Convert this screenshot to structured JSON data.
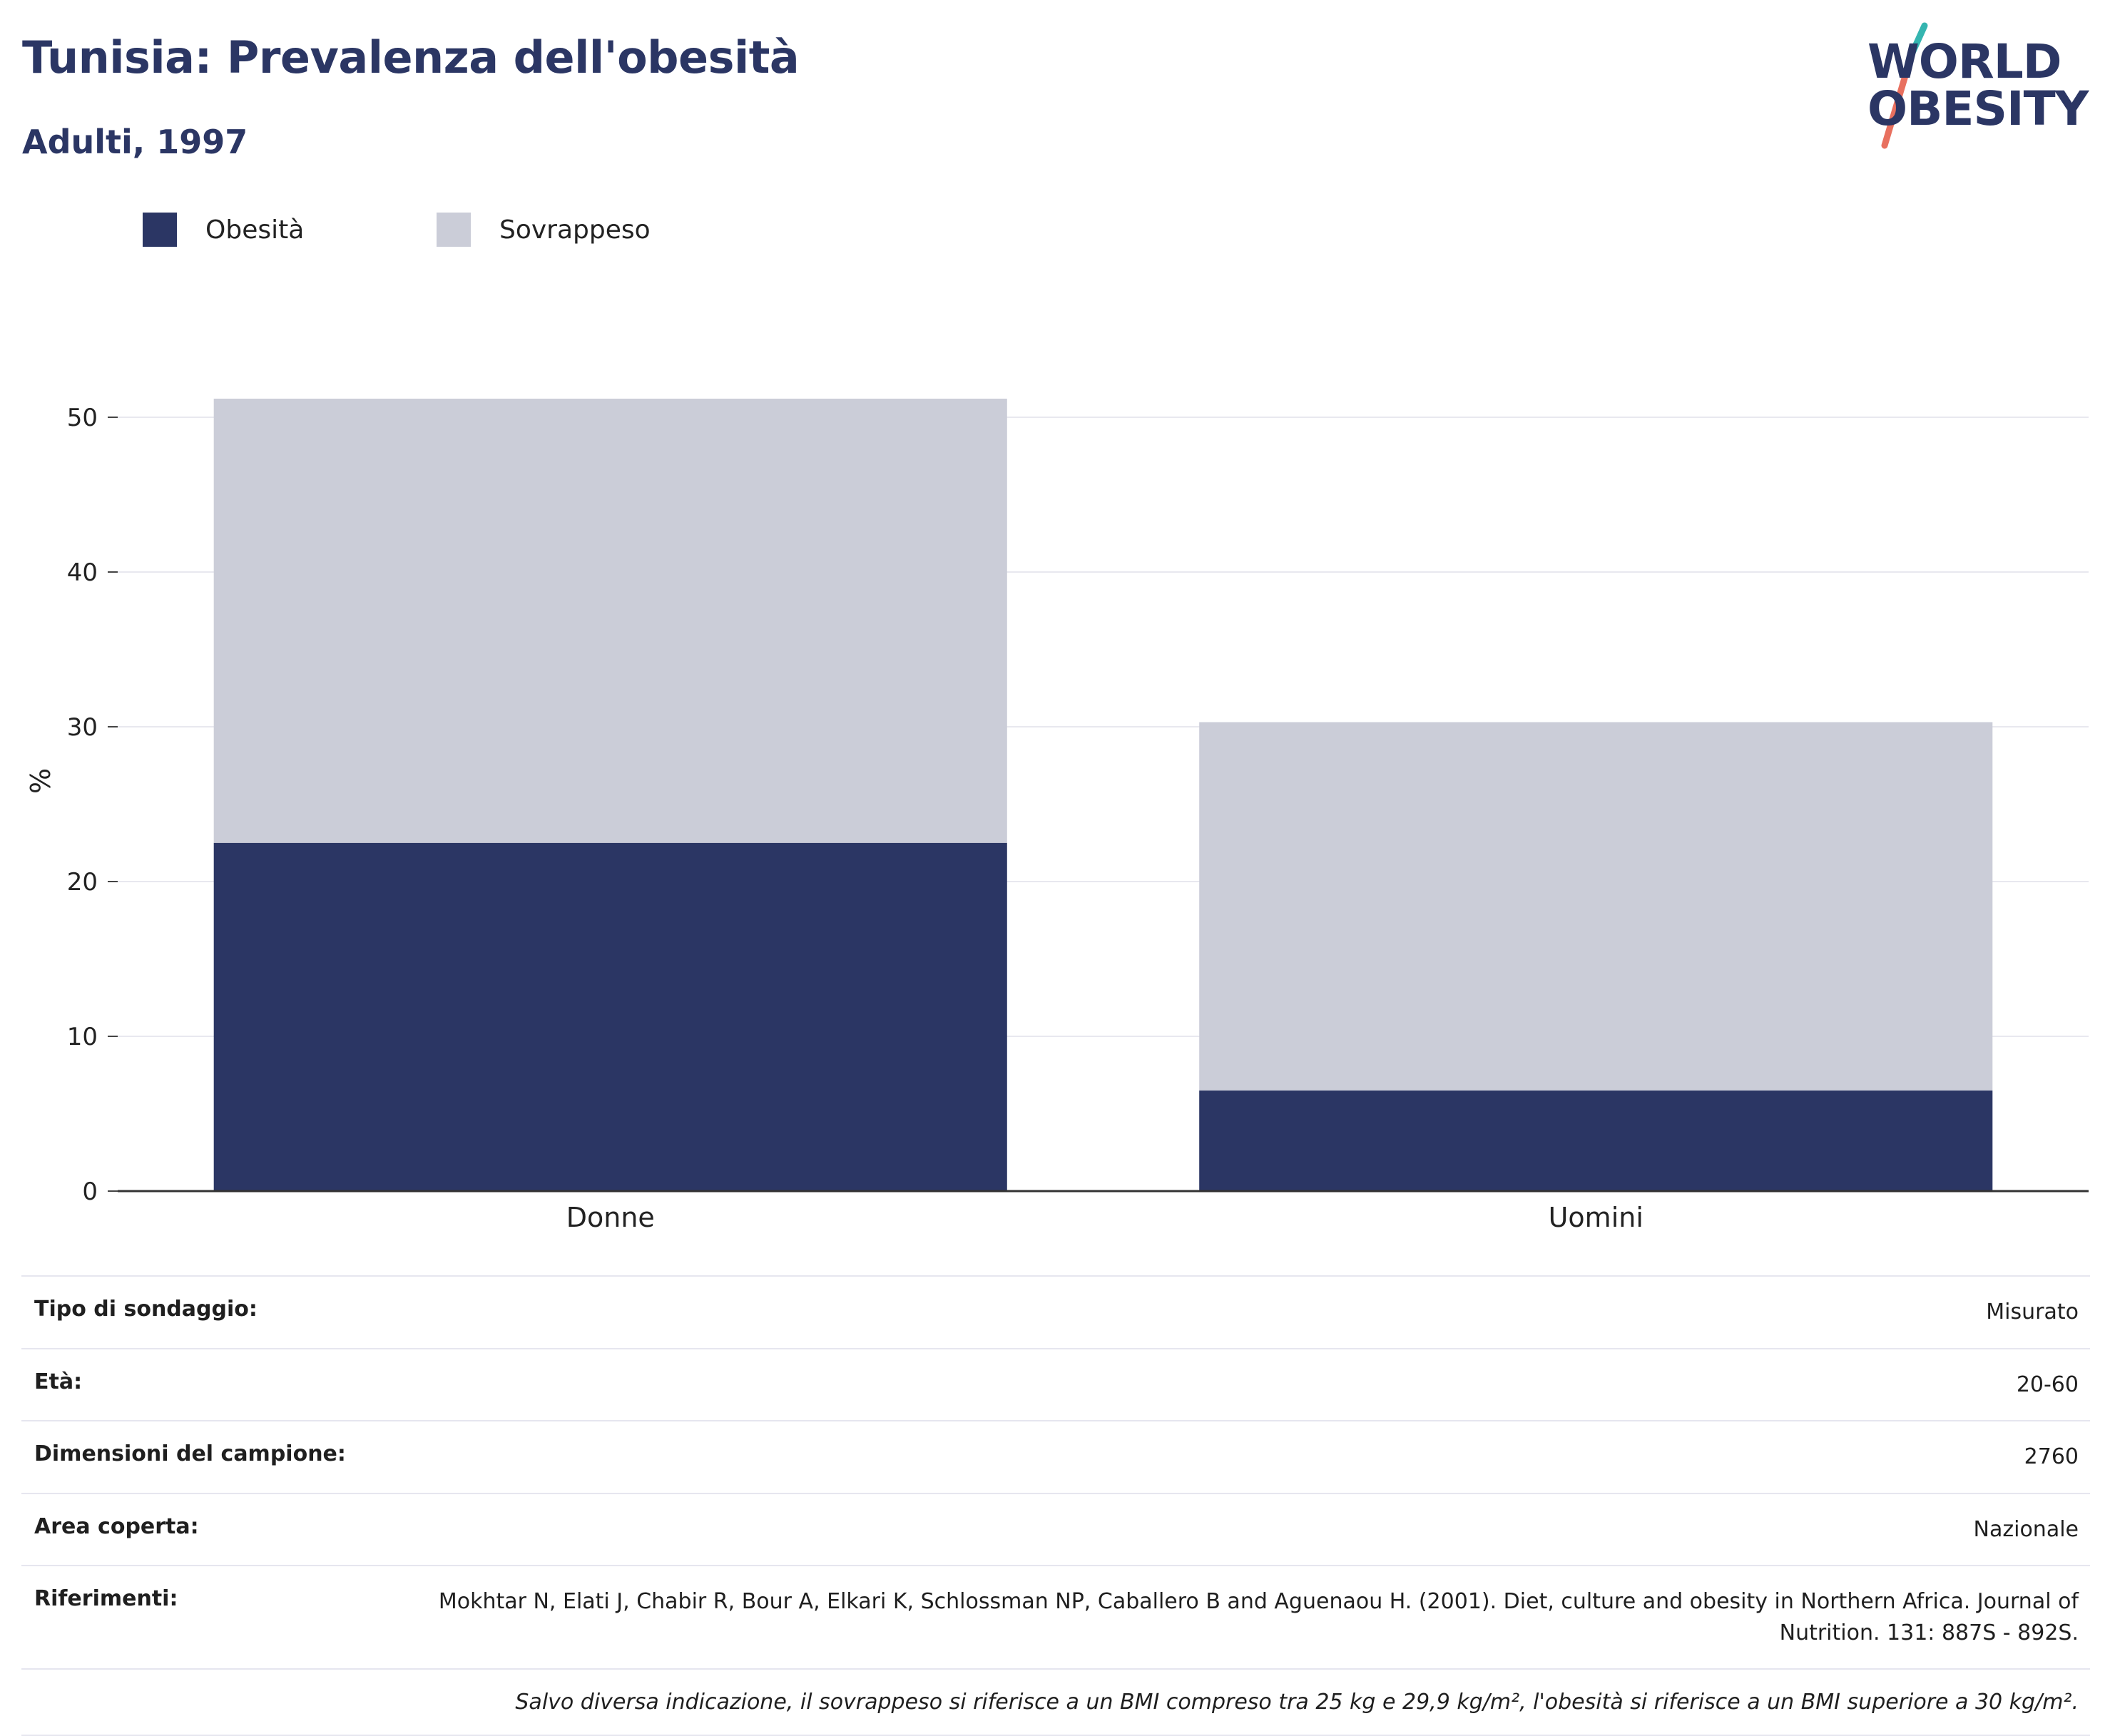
{
  "header": {
    "title": "Tunisia: Prevalenza dell'obesità",
    "subtitle": "Adulti, 1997",
    "logo_line1": "WORLD",
    "logo_line2": "OBESITY"
  },
  "colors": {
    "obesity": "#2b3664",
    "overweight": "#cbcdd8",
    "title": "#2b3664",
    "logo_teal": "#35b5b0",
    "logo_coral": "#e8705f"
  },
  "legend": [
    {
      "label": "Obesità",
      "color": "#2b3664"
    },
    {
      "label": "Sovrappeso",
      "color": "#cbcdd8"
    }
  ],
  "chart_data": {
    "type": "bar",
    "stacked": true,
    "categories": [
      "Donne",
      "Uomini"
    ],
    "series": [
      {
        "name": "Obesità",
        "values": [
          22.5,
          6.5
        ]
      },
      {
        "name": "Sovrappeso",
        "values": [
          28.7,
          23.8
        ]
      }
    ],
    "ylabel": "%",
    "xlabel": "",
    "ylim": [
      0,
      55
    ],
    "yticks": [
      0,
      10,
      20,
      30,
      40,
      50
    ],
    "grid": true,
    "legend_position": "top-left"
  },
  "info": {
    "rows": [
      {
        "key": "Tipo di sondaggio:",
        "value": "Misurato"
      },
      {
        "key": "Età:",
        "value": "20-60"
      },
      {
        "key": "Dimensioni del campione:",
        "value": "2760"
      },
      {
        "key": "Area coperta:",
        "value": "Nazionale"
      },
      {
        "key": "Riferimenti:",
        "value": "Mokhtar N, Elati J, Chabir R, Bour A, Elkari K, Schlossman NP, Caballero B and Aguenaou H. (2001). Diet, culture and obesity in Northern Africa. Journal of Nutrition. 131: 887S - 892S."
      }
    ],
    "note": "Salvo diversa indicazione, il sovrappeso si riferisce a un BMI compreso tra 25 kg e 29,9 kg/m², l'obesità si riferisce a un BMI superiore a 30 kg/m²."
  }
}
